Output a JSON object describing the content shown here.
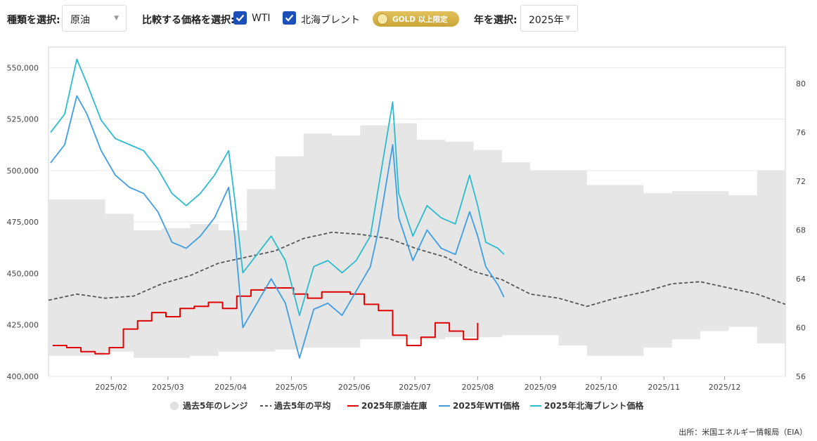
{
  "toolbar": {
    "type_label": "種類を選択:",
    "type_value": "原油",
    "compare_label": "比較する価格を選択:",
    "wti_label": "WTI",
    "brent_label": "北海ブレント",
    "gold_badge": "GOLD 以上限定",
    "year_label": "年を選択:",
    "year_value": "2025年"
  },
  "source": "出所：米国エネルギー情報局（EIA）",
  "colors": {
    "inventory": "#e00000",
    "avg": "#555555",
    "wti": "#3d9de6",
    "brent": "#2bbccf",
    "range": "#e6e6e6",
    "checkbox": "#1d4fb8",
    "gold": "#d4b24a"
  },
  "chart_data": {
    "type": "line",
    "x_start": "2025-01-01",
    "x_end": "2025-12-31",
    "x_ticks": [
      "2025/02",
      "2025/03",
      "2025/04",
      "2025/05",
      "2025/06",
      "2025/07",
      "2025/08",
      "2025/09",
      "2025/10",
      "2025/11",
      "2025/12"
    ],
    "y_left": {
      "range": [
        400000,
        560000
      ],
      "ticks": [
        "400,000",
        "425,000",
        "450,000",
        "475,000",
        "500,000",
        "525,000",
        "550,000"
      ]
    },
    "y_right": {
      "range": [
        56,
        83
      ],
      "ticks": [
        "56",
        "60",
        "64",
        "68",
        "72",
        "76",
        "80"
      ]
    },
    "grid": true,
    "legend_position": "bottom",
    "legend": [
      "過去5年のレンジ",
      "過去5年の平均",
      "2025年原油在庫",
      "2025年WTI価格",
      "2025年北海ブレント価格"
    ],
    "range_5y": {
      "dates": [
        "2025-01-01",
        "2025-01-15",
        "2025-01-29",
        "2025-02-12",
        "2025-02-26",
        "2025-03-12",
        "2025-03-26",
        "2025-04-09",
        "2025-04-23",
        "2025-05-07",
        "2025-05-21",
        "2025-06-04",
        "2025-06-18",
        "2025-07-02",
        "2025-07-16",
        "2025-07-30",
        "2025-08-13",
        "2025-08-27",
        "2025-09-10",
        "2025-09-24",
        "2025-10-08",
        "2025-10-22",
        "2025-11-05",
        "2025-11-19",
        "2025-12-03",
        "2025-12-17",
        "2025-12-31"
      ],
      "high": [
        486000,
        486000,
        479000,
        471000,
        472000,
        474000,
        471000,
        491000,
        507000,
        518000,
        517000,
        522000,
        523000,
        515000,
        514000,
        510000,
        504000,
        500000,
        500000,
        493000,
        493000,
        489000,
        490000,
        490000,
        488000,
        500000,
        494000
      ],
      "low": [
        410000,
        410000,
        412000,
        409000,
        409000,
        410000,
        412000,
        412000,
        413000,
        414000,
        414000,
        418000,
        418000,
        418000,
        419000,
        419000,
        420000,
        420000,
        415000,
        410000,
        410000,
        414000,
        418000,
        422000,
        424000,
        416000,
        415000
      ]
    },
    "series": [
      {
        "name": "過去5年の平均",
        "axis": "left",
        "dates": [
          "2025-01-01",
          "2025-01-15",
          "2025-01-29",
          "2025-02-12",
          "2025-02-26",
          "2025-03-12",
          "2025-03-26",
          "2025-04-09",
          "2025-04-23",
          "2025-05-07",
          "2025-05-21",
          "2025-06-04",
          "2025-06-18",
          "2025-07-02",
          "2025-07-16",
          "2025-07-30",
          "2025-08-13",
          "2025-08-27",
          "2025-09-10",
          "2025-09-24",
          "2025-10-08",
          "2025-10-22",
          "2025-11-05",
          "2025-11-19",
          "2025-12-03",
          "2025-12-17",
          "2025-12-31"
        ],
        "values": [
          437000,
          440000,
          438000,
          439000,
          445000,
          449000,
          455000,
          458000,
          461000,
          467000,
          470000,
          469000,
          467000,
          462000,
          458000,
          451000,
          447000,
          440000,
          438000,
          434000,
          438000,
          441000,
          445000,
          446000,
          443000,
          440000,
          435000
        ]
      },
      {
        "name": "2025年原油在庫",
        "axis": "left",
        "dates": [
          "2025-01-03",
          "2025-01-10",
          "2025-01-17",
          "2025-01-24",
          "2025-01-31",
          "2025-02-07",
          "2025-02-14",
          "2025-02-21",
          "2025-02-28",
          "2025-03-07",
          "2025-03-14",
          "2025-03-21",
          "2025-03-28",
          "2025-04-04",
          "2025-04-11",
          "2025-04-18",
          "2025-04-25",
          "2025-05-02",
          "2025-05-09",
          "2025-05-16",
          "2025-05-23",
          "2025-05-30",
          "2025-06-06",
          "2025-06-13",
          "2025-06-20",
          "2025-06-27",
          "2025-07-04",
          "2025-07-11",
          "2025-07-18",
          "2025-07-25",
          "2025-08-01"
        ],
        "values": [
          415000,
          414000,
          412000,
          411000,
          414000,
          423000,
          427000,
          431000,
          429000,
          433000,
          434000,
          436000,
          433000,
          439000,
          442000,
          443000,
          443000,
          440000,
          438000,
          441000,
          441000,
          440000,
          435000,
          432000,
          420000,
          415000,
          419000,
          426000,
          422000,
          418000,
          426000
        ]
      },
      {
        "name": "2025年WTI価格",
        "axis": "right",
        "dates": [
          "2025-01-02",
          "2025-01-09",
          "2025-01-15",
          "2025-01-20",
          "2025-01-27",
          "2025-02-03",
          "2025-02-10",
          "2025-02-17",
          "2025-02-24",
          "2025-03-03",
          "2025-03-10",
          "2025-03-17",
          "2025-03-24",
          "2025-03-31",
          "2025-04-03",
          "2025-04-07",
          "2025-04-14",
          "2025-04-21",
          "2025-04-28",
          "2025-05-05",
          "2025-05-12",
          "2025-05-19",
          "2025-05-26",
          "2025-06-02",
          "2025-06-09",
          "2025-06-13",
          "2025-06-20",
          "2025-06-23",
          "2025-06-30",
          "2025-07-07",
          "2025-07-14",
          "2025-07-21",
          "2025-07-28",
          "2025-08-01",
          "2025-08-05",
          "2025-08-11",
          "2025-08-14"
        ],
        "values": [
          73.5,
          75.0,
          79.0,
          77.5,
          74.5,
          72.5,
          71.5,
          71.0,
          69.5,
          67.0,
          66.5,
          67.5,
          69.0,
          71.5,
          67.5,
          60.0,
          62.0,
          64.0,
          62.0,
          57.5,
          61.5,
          62.0,
          61.0,
          63.0,
          65.0,
          68.0,
          75.0,
          69.0,
          65.5,
          68.0,
          66.5,
          66.0,
          69.5,
          67.5,
          65.0,
          63.5,
          62.5
        ]
      },
      {
        "name": "2025年北海ブレント価格",
        "axis": "right",
        "dates": [
          "2025-01-02",
          "2025-01-09",
          "2025-01-15",
          "2025-01-20",
          "2025-01-27",
          "2025-02-03",
          "2025-02-10",
          "2025-02-17",
          "2025-02-24",
          "2025-03-03",
          "2025-03-10",
          "2025-03-17",
          "2025-03-24",
          "2025-03-31",
          "2025-04-03",
          "2025-04-07",
          "2025-04-14",
          "2025-04-21",
          "2025-04-28",
          "2025-05-05",
          "2025-05-12",
          "2025-05-19",
          "2025-05-26",
          "2025-06-02",
          "2025-06-09",
          "2025-06-13",
          "2025-06-20",
          "2025-06-23",
          "2025-06-30",
          "2025-07-07",
          "2025-07-14",
          "2025-07-21",
          "2025-07-28",
          "2025-08-01",
          "2025-08-05",
          "2025-08-11",
          "2025-08-14"
        ],
        "values": [
          76.0,
          77.5,
          82.0,
          80.0,
          77.0,
          75.5,
          75.0,
          74.5,
          73.0,
          71.0,
          70.0,
          71.0,
          72.5,
          74.5,
          70.5,
          64.5,
          66.0,
          67.5,
          65.5,
          61.0,
          65.0,
          65.5,
          64.5,
          65.5,
          67.5,
          71.5,
          78.5,
          71.0,
          67.5,
          70.0,
          69.0,
          68.5,
          72.5,
          70.0,
          67.0,
          66.5,
          66.0
        ]
      }
    ]
  }
}
